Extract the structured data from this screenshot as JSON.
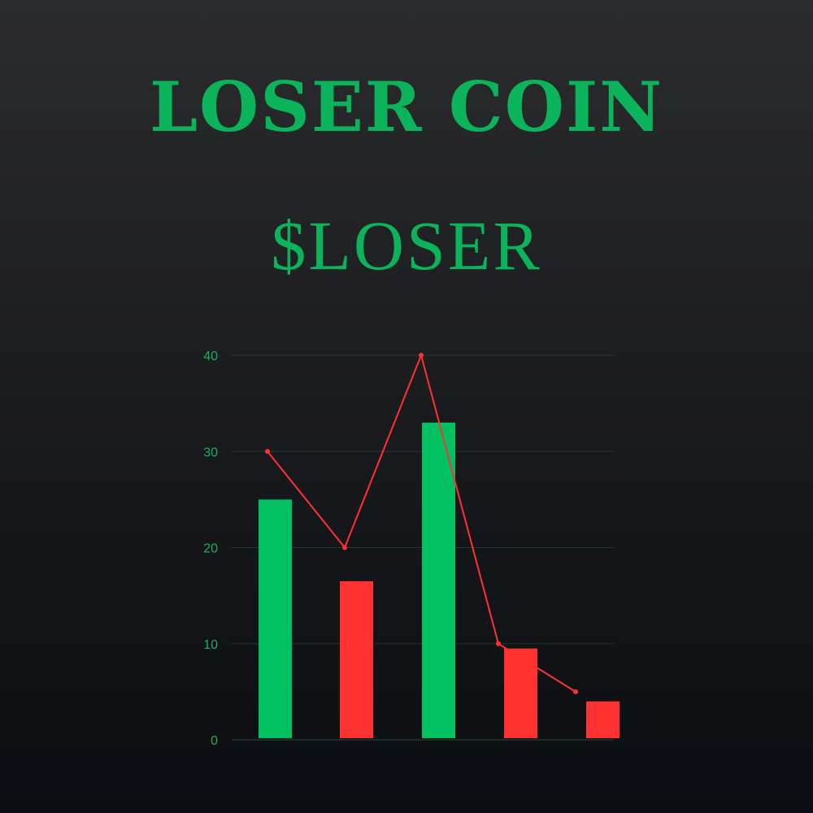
{
  "header": {
    "title": "LOSER COIN",
    "ticker": "$LOSER"
  },
  "colors": {
    "brand_green": "#0bb35a",
    "bar_green": "#00c062",
    "bar_red": "#ff3131",
    "line_red": "#ff3131",
    "grid": "#1d3a2c",
    "tick_text": "#1fae5f"
  },
  "chart_data": {
    "type": "bar",
    "title": "",
    "xlabel": "",
    "ylabel": "",
    "ylim": [
      0,
      40
    ],
    "yticks": [
      "0",
      "10",
      "20",
      "30",
      "40"
    ],
    "grid": true,
    "legend": "none",
    "bars": [
      {
        "value": 25,
        "color": "green"
      },
      {
        "value": 16.5,
        "color": "red"
      },
      {
        "value": 33,
        "color": "green"
      },
      {
        "value": 9.5,
        "color": "red"
      },
      {
        "value": 4,
        "color": "red"
      }
    ],
    "line": {
      "values": [
        30,
        20,
        40,
        10,
        5
      ],
      "color": "red"
    }
  }
}
